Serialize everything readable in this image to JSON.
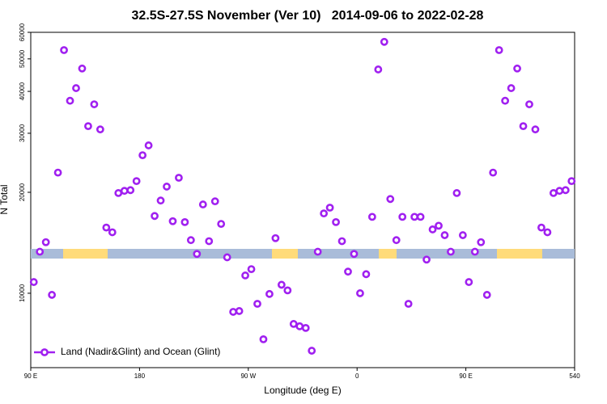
{
  "chart_data": {
    "type": "scatter",
    "title": "32.5S-27.5S November (Ver 10)   2014-09-06 to 2022-02-28",
    "xlabel": "Longitude (deg E)",
    "ylabel": "N Total",
    "xlim": [
      90,
      540
    ],
    "xticks": [
      {
        "value": 90,
        "label": "90 E"
      },
      180,
      {
        "value": 270,
        "label": "90 W"
      },
      {
        "value": 360,
        "label": "0"
      },
      {
        "value": 450,
        "label": "90 E"
      },
      540
    ],
    "ylim": [
      6000,
      60000
    ],
    "log_y": true,
    "yticks": [
      10000,
      20000,
      30000,
      40000,
      50000,
      60000
    ],
    "legend": "bottom-left",
    "series": [
      {
        "name": "Land (Nadir&Glint) and Ocean (Glint)",
        "color": "#a020f0",
        "x": [
          92.5,
          97.5,
          102.5,
          107.5,
          112.5,
          117.5,
          122.5,
          127.5,
          132.5,
          137.5,
          142.5,
          147.5,
          152.5,
          157.5,
          162.5,
          167.5,
          172.5,
          177.5,
          182.5,
          187.5,
          192.5,
          197.5,
          202.5,
          207.5,
          212.5,
          217.5,
          222.5,
          227.5,
          232.5,
          237.5,
          242.5,
          247.5,
          252.5,
          257.5,
          262.5,
          267.5,
          272.5,
          277.5,
          282.5,
          287.5,
          292.5,
          297.5,
          302.5,
          307.5,
          312.5,
          317.5,
          322.5,
          327.5,
          332.5,
          337.5,
          342.5,
          347.5,
          352.5,
          357.5,
          362.5,
          367.5,
          372.5,
          377.5,
          382.5,
          387.5,
          392.5,
          397.5,
          402.5,
          407.5,
          412.5,
          417.5,
          422.5,
          427.5,
          432.5,
          437.5,
          442.5,
          447.5,
          452.5,
          457.5,
          462.5,
          467.5,
          472.5,
          477.5,
          482.5,
          487.5,
          492.5,
          497.5,
          502.5,
          507.5,
          512.5,
          517.5,
          522.5,
          527.5,
          532.5,
          537.5
        ],
        "values": [
          10800,
          13300,
          14200,
          9890,
          22900,
          53100,
          37500,
          40900,
          46800,
          31500,
          36600,
          30800,
          15700,
          15200,
          19900,
          20200,
          20300,
          21600,
          25800,
          27600,
          17000,
          18900,
          20800,
          16400,
          22100,
          16300,
          14400,
          13100,
          18400,
          14300,
          18800,
          16100,
          12800,
          8800,
          8850,
          11300,
          11800,
          9300,
          7290,
          9950,
          14600,
          10600,
          10200,
          8100,
          7970,
          7880,
          6740,
          13300,
          17300,
          18000,
          16300,
          14300,
          11600,
          13100,
          10000,
          11400,
          16900,
          46500,
          56200,
          19100,
          14400,
          16900,
          9300,
          16900,
          16900,
          12600,
          15500,
          15900,
          14900,
          13300,
          19900,
          14900,
          10800,
          13300,
          14200,
          9890,
          22900,
          53100,
          37500,
          40900,
          46800,
          31500,
          36600,
          30800,
          15700,
          15200,
          19900,
          20200,
          20300,
          21600
        ]
      }
    ]
  }
}
